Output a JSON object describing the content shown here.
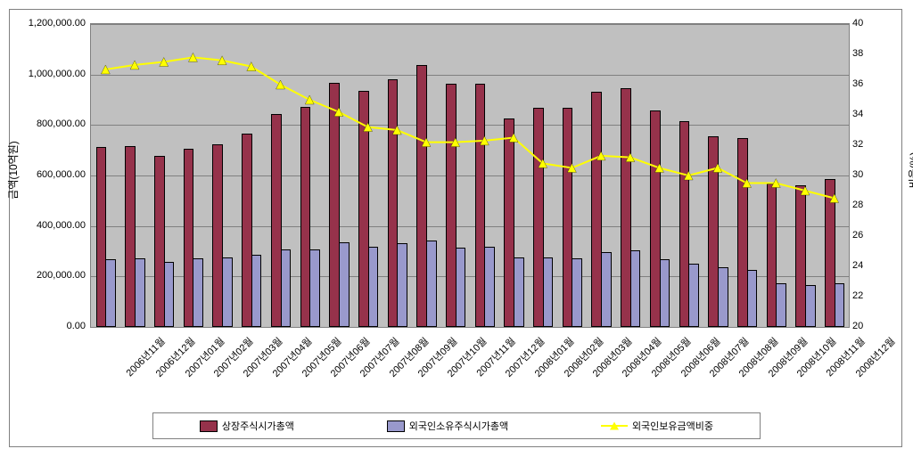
{
  "chart": {
    "type": "combo-bar-line",
    "plot_background": "#c0c0c0",
    "chart_background": "#ffffff",
    "border_color": "#808080",
    "grid_color": "#808080",
    "categories": [
      "2006년11월",
      "2006년12월",
      "2007년01월",
      "2007년02월",
      "2007년03월",
      "2007년04월",
      "2007년05월",
      "2007년06월",
      "2007년07월",
      "2007년08월",
      "2007년09월",
      "2007년10월",
      "2007년11월",
      "2007년12월",
      "2008년01월",
      "2008년02월",
      "2008년03월",
      "2008년04월",
      "2008년05월",
      "2008년06월",
      "2008년07월",
      "2008년08월",
      "2008년09월",
      "2008년10월",
      "2008년11월",
      "2008년12월"
    ],
    "y_left": {
      "label": "금액(10억원)",
      "min": 0,
      "max": 1200000,
      "tick_step": 200000,
      "ticks": [
        "0.00",
        "200,000.00",
        "400,000.00",
        "600,000.00",
        "800,000.00",
        "1,000,000.00",
        "1,200,000.00"
      ],
      "label_fontsize": 12
    },
    "y_right": {
      "label": "비율(%)",
      "min": 20,
      "max": 40,
      "tick_step": 2,
      "ticks": [
        "20",
        "22",
        "24",
        "26",
        "28",
        "30",
        "32",
        "34",
        "36",
        "38",
        "40"
      ],
      "label_fontsize": 12
    },
    "series1": {
      "name": "상장주식시가총액",
      "type": "bar",
      "color": "#96324b",
      "values": [
        705000,
        710000,
        670000,
        700000,
        715000,
        760000,
        835000,
        865000,
        960000,
        930000,
        975000,
        1030000,
        955000,
        955000,
        820000,
        860000,
        860000,
        925000,
        940000,
        850000,
        810000,
        750000,
        740000,
        560000,
        555000,
        580000
      ]
    },
    "series2": {
      "name": "외국인소유주식시가총액",
      "type": "bar",
      "color": "#9999cc",
      "values": [
        260000,
        265000,
        250000,
        265000,
        270000,
        280000,
        300000,
        300000,
        330000,
        310000,
        325000,
        335000,
        308000,
        310000,
        270000,
        270000,
        265000,
        290000,
        295000,
        260000,
        245000,
        230000,
        220000,
        165000,
        160000,
        165000
      ]
    },
    "series3": {
      "name": "외국인보유금액비중",
      "type": "line",
      "color": "#ffff00",
      "marker_color": "#ffff00",
      "marker_style": "triangle",
      "line_width": 2,
      "values": [
        37.0,
        37.3,
        37.5,
        37.8,
        37.6,
        37.2,
        36.0,
        35.0,
        34.2,
        33.2,
        33.0,
        32.2,
        32.2,
        32.3,
        32.5,
        30.8,
        30.5,
        31.3,
        31.2,
        30.5,
        30.0,
        30.5,
        29.5,
        29.5,
        29.0,
        28.5
      ]
    },
    "bar_group_width": 0.65,
    "legend": {
      "items": [
        "상장주식시가총액",
        "외국인소유주식시가총액",
        "외국인보유금액비중"
      ]
    }
  }
}
